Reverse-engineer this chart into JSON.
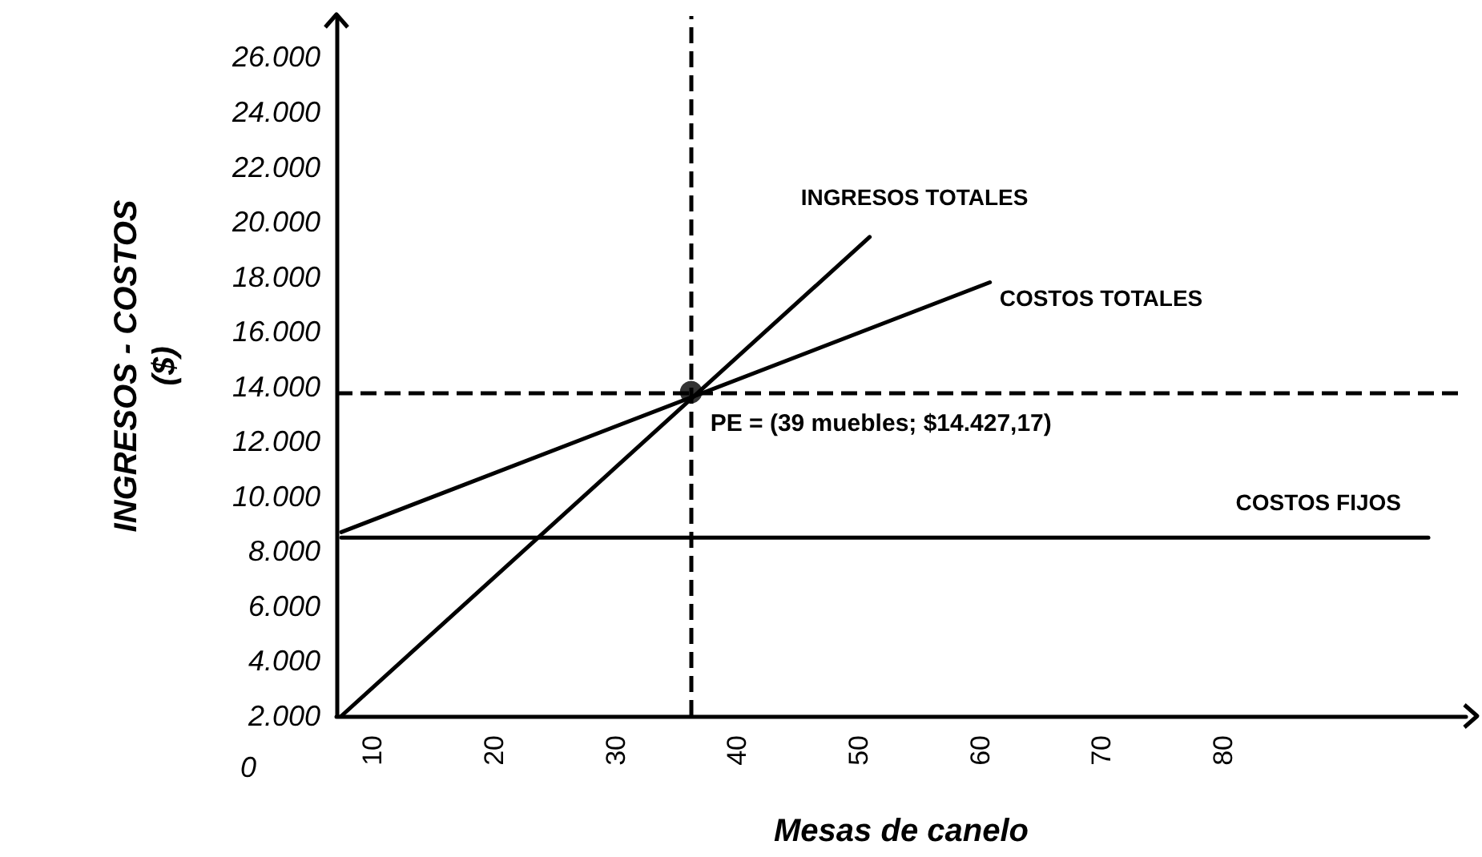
{
  "chart_data": {
    "type": "line",
    "xlabel": "Mesas de canelo",
    "ylabel": "INGRESOS - COSTOS\n($)",
    "xlim": [
      7,
      100
    ],
    "xticks": [
      10,
      20,
      30,
      40,
      50,
      60,
      70,
      80
    ],
    "ylim": [
      2000,
      27500
    ],
    "yticks": [
      {
        "value": 2000,
        "label": "2.000"
      },
      {
        "value": 4000,
        "label": "4.000"
      },
      {
        "value": 6000,
        "label": "6.000"
      },
      {
        "value": 8000,
        "label": "8.000"
      },
      {
        "value": 10000,
        "label": "10.000"
      },
      {
        "value": 12000,
        "label": "12.000"
      },
      {
        "value": 14000,
        "label": "14.000"
      },
      {
        "value": 16000,
        "label": "16.000"
      },
      {
        "value": 18000,
        "label": "18.000"
      },
      {
        "value": 20000,
        "label": "20.000"
      },
      {
        "value": 22000,
        "label": "22.000"
      },
      {
        "value": 24000,
        "label": "24.000"
      },
      {
        "value": 26000,
        "label": "26.000"
      }
    ],
    "marker": "none",
    "line_style": "solid",
    "grid": false,
    "legend": false,
    "series": [
      {
        "name": "INGRESOS TOTALES",
        "color": "#000000",
        "x": [
          7.4,
          50.9
        ],
        "values": [
          2000,
          19450
        ]
      },
      {
        "name": "COSTOS TOTALES",
        "color": "#000000",
        "x": [
          7.4,
          60.8
        ],
        "values": [
          8700,
          17800
        ]
      },
      {
        "name": "COSTOS FIJOS",
        "color": "#000000",
        "x": [
          7.4,
          96.9
        ],
        "values": [
          8500,
          8500
        ]
      },
      {
        "type": "scatter",
        "marker": "circle",
        "color": "#000000",
        "x": [
          36.2
        ],
        "values": [
          13800
        ]
      }
    ],
    "ref_lines": [
      {
        "axis": "x",
        "value": 36.2,
        "color": "#000000",
        "line_style": "dashed"
      },
      {
        "axis": "y",
        "value": 13800,
        "color": "#000000",
        "line_style": "dashed"
      }
    ],
    "annotations": [
      {
        "text": "PE = (39 muebles; $14.427,17)",
        "x": 36.2,
        "y": 13800
      },
      "0"
    ]
  }
}
